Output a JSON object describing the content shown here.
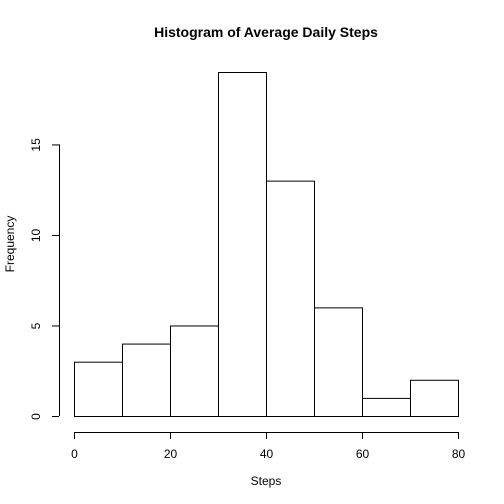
{
  "chart_data": {
    "type": "bar",
    "title": "Histogram of Average Daily Steps",
    "xlabel": "Steps",
    "ylabel": "Frequency",
    "bins": [
      [
        0,
        10
      ],
      [
        10,
        20
      ],
      [
        20,
        30
      ],
      [
        30,
        40
      ],
      [
        40,
        50
      ],
      [
        50,
        60
      ],
      [
        60,
        70
      ],
      [
        70,
        80
      ]
    ],
    "values": [
      3,
      4,
      5,
      19,
      13,
      6,
      1,
      2
    ],
    "xlim": [
      0,
      80
    ],
    "ylim": [
      0,
      19
    ],
    "xticks": [
      0,
      20,
      40,
      60,
      80
    ],
    "yticks": [
      0,
      5,
      10,
      15
    ],
    "grid": false,
    "legend": "none"
  }
}
